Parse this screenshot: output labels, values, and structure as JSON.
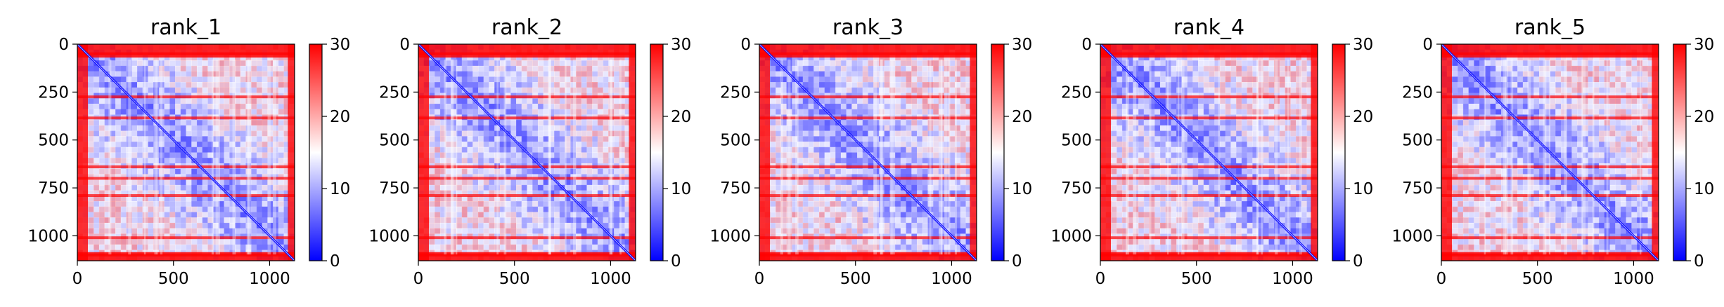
{
  "chart_data": [
    {
      "type": "heatmap",
      "title": "rank_1",
      "x_ticks": [
        0,
        500,
        1000
      ],
      "y_ticks": [
        0,
        250,
        500,
        750,
        1000
      ],
      "xlim": [
        0,
        1130
      ],
      "ylim": [
        1130,
        0
      ],
      "colorbar": {
        "min": 0,
        "max": 30,
        "ticks": [
          0,
          10,
          20,
          30
        ]
      },
      "colormap": [
        "#0000ff",
        "#ffffff",
        "#ff0000"
      ],
      "red_rows": [
        50,
        275,
        385,
        640,
        700,
        790,
        1010,
        1100
      ]
    },
    {
      "type": "heatmap",
      "title": "rank_2",
      "x_ticks": [
        0,
        500,
        1000
      ],
      "y_ticks": [
        0,
        250,
        500,
        750,
        1000
      ],
      "xlim": [
        0,
        1130
      ],
      "ylim": [
        1130,
        0
      ],
      "colorbar": {
        "min": 0,
        "max": 30,
        "ticks": [
          0,
          10,
          20,
          30
        ]
      },
      "colormap": [
        "#0000ff",
        "#ffffff",
        "#ff0000"
      ],
      "red_rows": [
        50,
        275,
        385,
        640,
        700,
        790,
        1010,
        1100
      ]
    },
    {
      "type": "heatmap",
      "title": "rank_3",
      "x_ticks": [
        0,
        500,
        1000
      ],
      "y_ticks": [
        0,
        250,
        500,
        750,
        1000
      ],
      "xlim": [
        0,
        1130
      ],
      "ylim": [
        1130,
        0
      ],
      "colorbar": {
        "min": 0,
        "max": 30,
        "ticks": [
          0,
          10,
          20,
          30
        ]
      },
      "colormap": [
        "#0000ff",
        "#ffffff",
        "#ff0000"
      ],
      "red_rows": [
        50,
        275,
        385,
        640,
        700,
        790,
        1010,
        1100
      ]
    },
    {
      "type": "heatmap",
      "title": "rank_4",
      "x_ticks": [
        0,
        500,
        1000
      ],
      "y_ticks": [
        0,
        250,
        500,
        750,
        1000
      ],
      "xlim": [
        0,
        1130
      ],
      "ylim": [
        1130,
        0
      ],
      "colorbar": {
        "min": 0,
        "max": 30,
        "ticks": [
          0,
          10,
          20,
          30
        ]
      },
      "colormap": [
        "#0000ff",
        "#ffffff",
        "#ff0000"
      ],
      "red_rows": [
        50,
        275,
        385,
        640,
        700,
        790,
        1010,
        1100
      ]
    },
    {
      "type": "heatmap",
      "title": "rank_5",
      "x_ticks": [
        0,
        500,
        1000
      ],
      "y_ticks": [
        0,
        250,
        500,
        750,
        1000
      ],
      "xlim": [
        0,
        1130
      ],
      "ylim": [
        1130,
        0
      ],
      "colorbar": {
        "min": 0,
        "max": 30,
        "ticks": [
          0,
          10,
          20,
          30
        ]
      },
      "colormap": [
        "#0000ff",
        "#ffffff",
        "#ff0000"
      ],
      "red_rows": [
        50,
        275,
        385,
        640,
        700,
        790,
        1010,
        1100
      ]
    }
  ]
}
